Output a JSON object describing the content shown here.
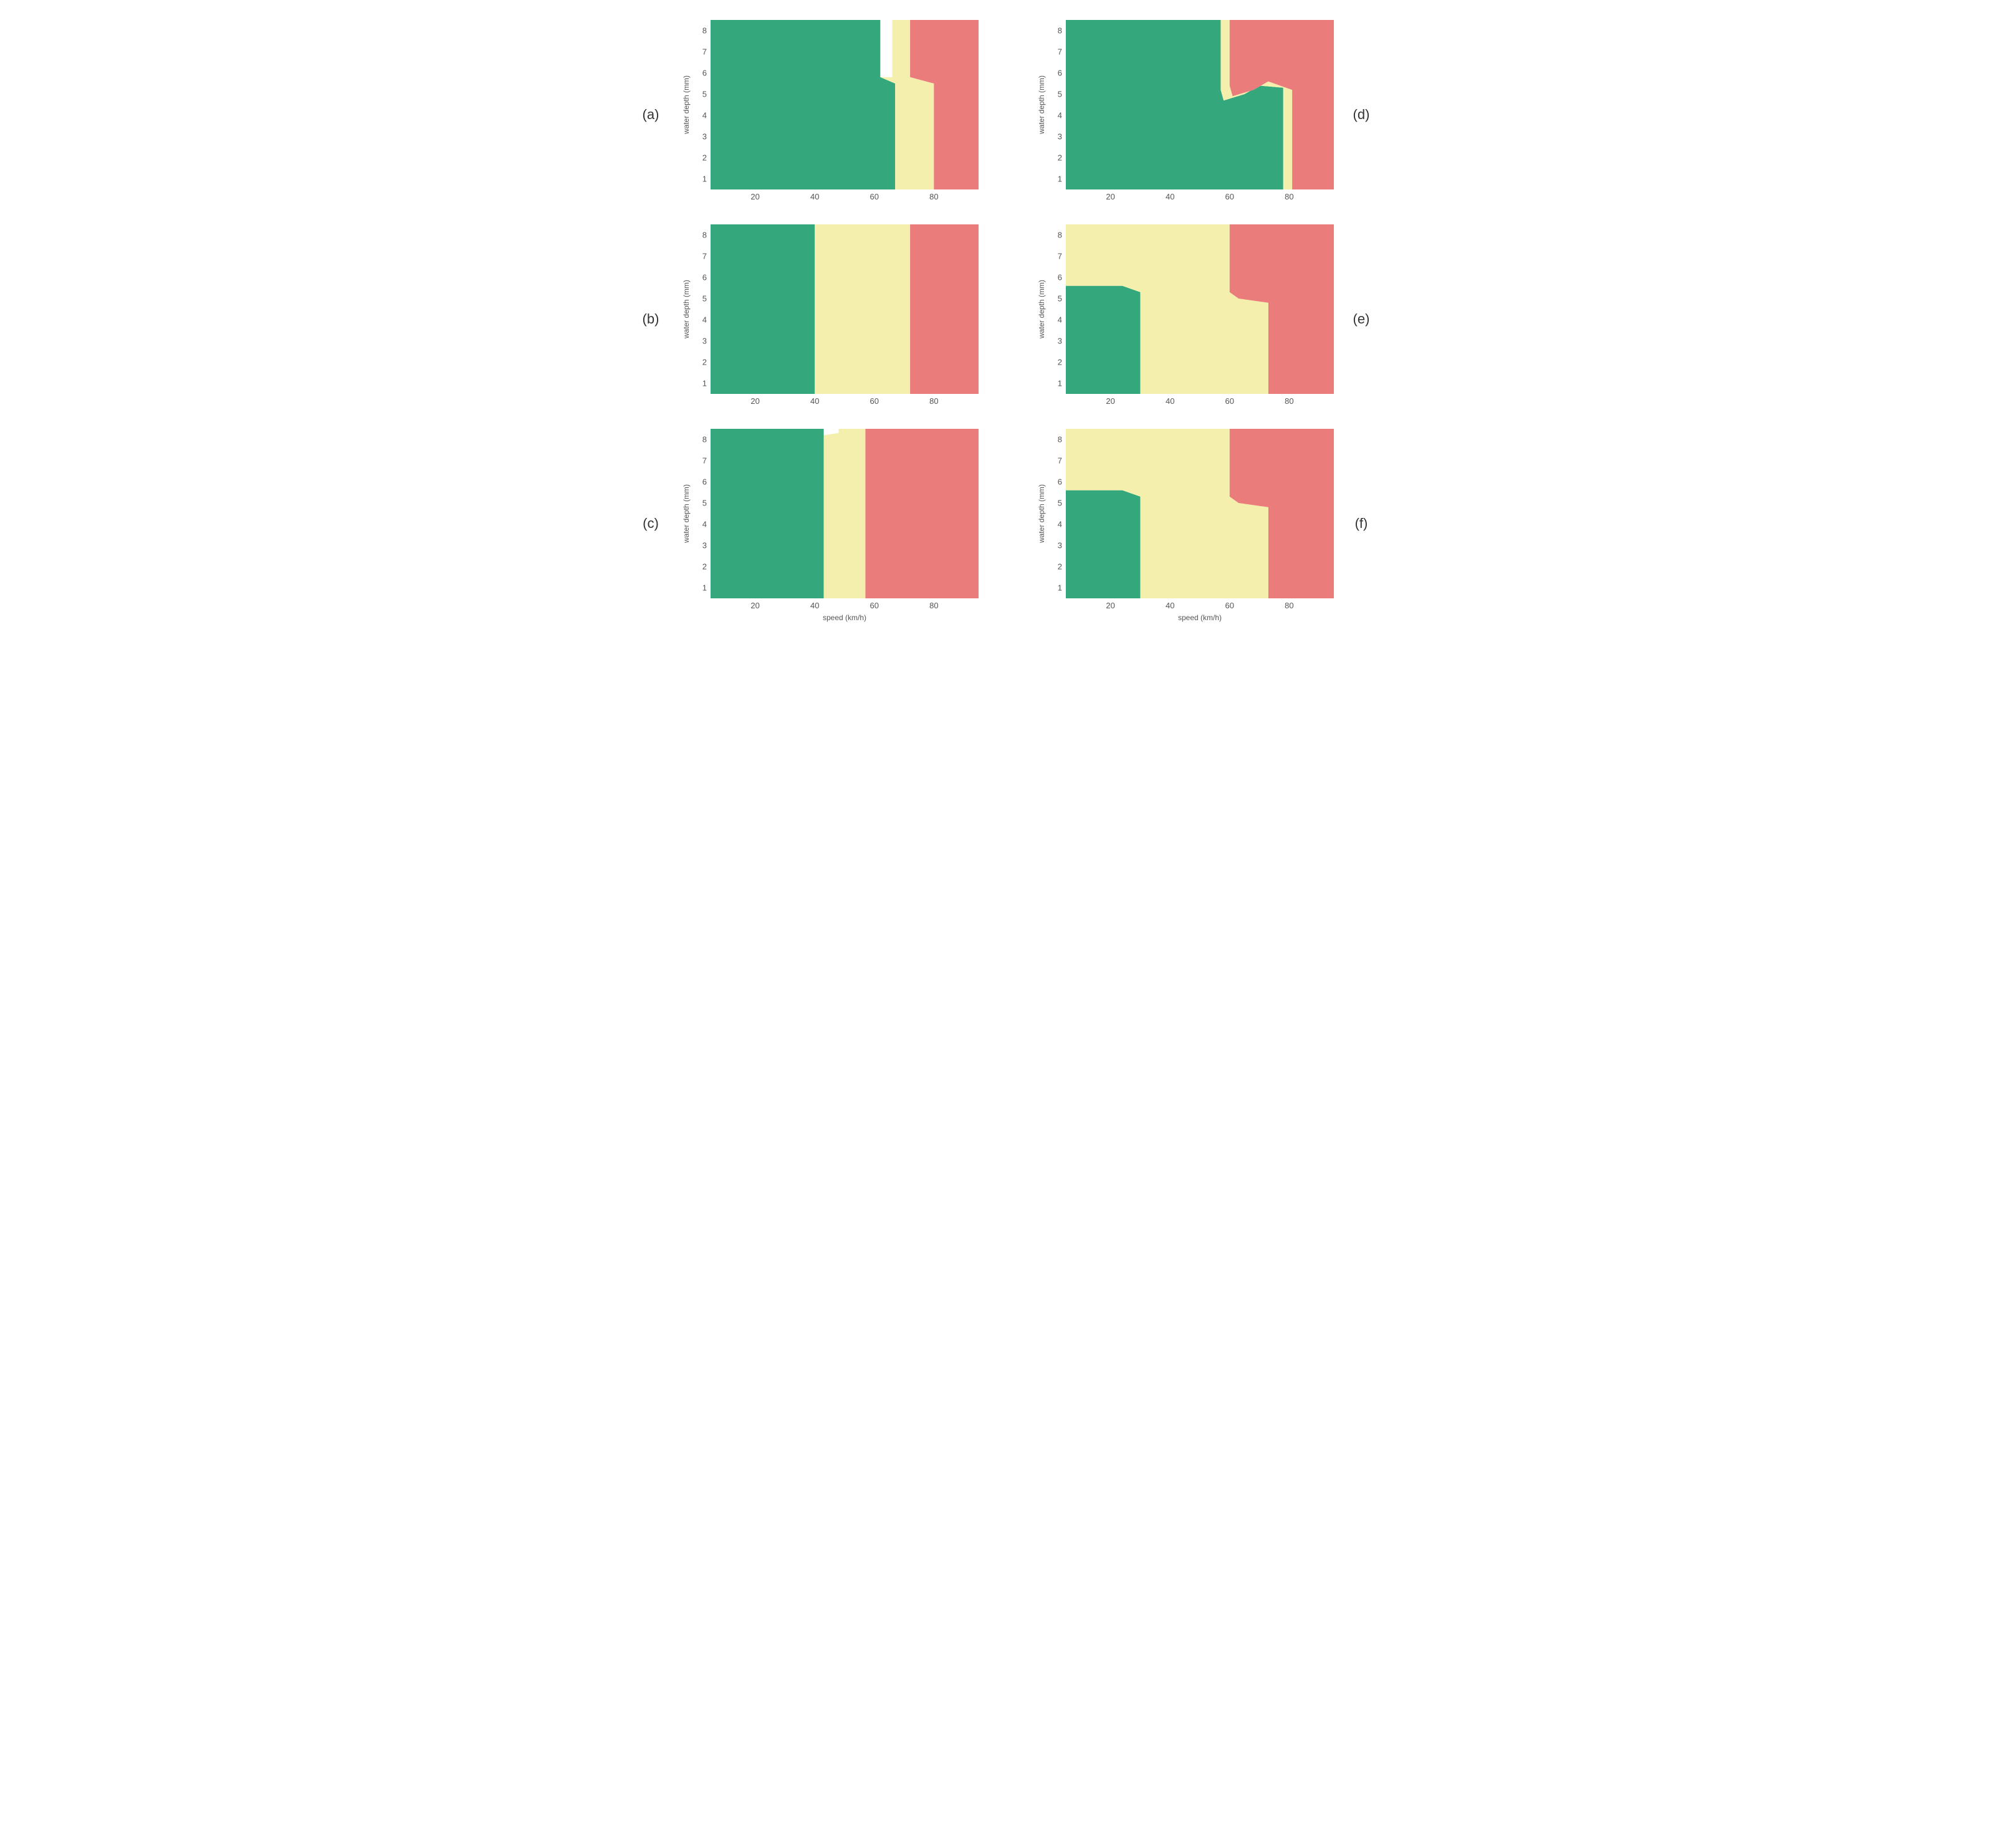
{
  "colors": {
    "green": "#34a77d",
    "yellow": "#f4efac",
    "red": "#ea7d7c",
    "background": "#ffffff",
    "axis_text": "#555555"
  },
  "axes": {
    "xlabel": "speed (km/h)",
    "ylabel": "water depth (mm)",
    "xlim": [
      5,
      95
    ],
    "ylim": [
      0.5,
      8.5
    ],
    "xticks": [
      20,
      40,
      60,
      80
    ],
    "yticks": [
      1,
      2,
      3,
      4,
      5,
      6,
      7,
      8
    ],
    "label_fontsize": 12,
    "tick_fontsize": 13,
    "show_xlabel_rows": [
      2
    ],
    "show_ylabel_all": true
  },
  "layout": {
    "rows": 3,
    "cols": 2,
    "panel_order": [
      [
        "a",
        "d"
      ],
      [
        "b",
        "e"
      ],
      [
        "c",
        "f"
      ]
    ],
    "label_side": {
      "left": [
        "a",
        "b",
        "c"
      ],
      "right": [
        "d",
        "e",
        "f"
      ]
    }
  },
  "panels": {
    "a": {
      "label": "(a)",
      "regions": [
        {
          "fill": "green",
          "points": [
            [
              5,
              0.5
            ],
            [
              67,
              0.5
            ],
            [
              67,
              5.5
            ],
            [
              62,
              5.8
            ],
            [
              62,
              8.5
            ],
            [
              5,
              8.5
            ]
          ]
        },
        {
          "fill": "yellow",
          "points": [
            [
              67,
              0.5
            ],
            [
              80,
              0.5
            ],
            [
              80,
              5.5
            ],
            [
              72,
              5.8
            ],
            [
              72,
              8.5
            ],
            [
              66,
              8.5
            ],
            [
              66,
              5.8
            ],
            [
              62,
              5.8
            ],
            [
              67,
              5.5
            ]
          ]
        },
        {
          "fill": "red",
          "points": [
            [
              80,
              0.5
            ],
            [
              95,
              0.5
            ],
            [
              95,
              8.5
            ],
            [
              72,
              8.5
            ],
            [
              72,
              5.8
            ],
            [
              80,
              5.5
            ]
          ]
        }
      ]
    },
    "b": {
      "label": "(b)",
      "regions": [
        {
          "fill": "green",
          "points": [
            [
              5,
              0.5
            ],
            [
              40,
              0.5
            ],
            [
              40,
              8.5
            ],
            [
              5,
              8.5
            ]
          ]
        },
        {
          "fill": "yellow",
          "points": [
            [
              40,
              0.5
            ],
            [
              72,
              0.5
            ],
            [
              72,
              8.5
            ],
            [
              40,
              8.5
            ]
          ]
        },
        {
          "fill": "red",
          "points": [
            [
              72,
              0.5
            ],
            [
              95,
              0.5
            ],
            [
              95,
              8.5
            ],
            [
              72,
              8.5
            ]
          ]
        }
      ]
    },
    "c": {
      "label": "(c)",
      "regions": [
        {
          "fill": "green",
          "points": [
            [
              5,
              0.5
            ],
            [
              43,
              0.5
            ],
            [
              43,
              8.5
            ],
            [
              5,
              8.5
            ]
          ]
        },
        {
          "fill": "yellow",
          "points": [
            [
              43,
              0.5
            ],
            [
              57,
              0.5
            ],
            [
              57,
              8.5
            ],
            [
              48,
              8.5
            ],
            [
              48,
              8.3
            ],
            [
              43,
              8.2
            ]
          ]
        },
        {
          "fill": "red",
          "points": [
            [
              57,
              0.5
            ],
            [
              95,
              0.5
            ],
            [
              95,
              8.5
            ],
            [
              57,
              8.5
            ]
          ]
        }
      ]
    },
    "d": {
      "label": "(d)",
      "regions": [
        {
          "fill": "green",
          "points": [
            [
              5,
              0.5
            ],
            [
              78,
              0.5
            ],
            [
              78,
              5.3
            ],
            [
              70,
              5.4
            ],
            [
              65,
              5.0
            ],
            [
              58,
              4.7
            ],
            [
              57,
              5.2
            ],
            [
              57,
              8.5
            ],
            [
              5,
              8.5
            ]
          ]
        },
        {
          "fill": "yellow",
          "points": [
            [
              78,
              0.5
            ],
            [
              81,
              0.5
            ],
            [
              81,
              5.2
            ],
            [
              73,
              5.6
            ],
            [
              68,
              5.2
            ],
            [
              61,
              4.9
            ],
            [
              60,
              5.4
            ],
            [
              60,
              8.5
            ],
            [
              57,
              8.5
            ],
            [
              57,
              5.2
            ],
            [
              58,
              4.7
            ],
            [
              65,
              5.0
            ],
            [
              70,
              5.4
            ],
            [
              78,
              5.3
            ]
          ]
        },
        {
          "fill": "red",
          "points": [
            [
              81,
              0.5
            ],
            [
              95,
              0.5
            ],
            [
              95,
              8.5
            ],
            [
              60,
              8.5
            ],
            [
              60,
              5.4
            ],
            [
              61,
              4.9
            ],
            [
              68,
              5.2
            ],
            [
              73,
              5.6
            ],
            [
              81,
              5.2
            ]
          ]
        }
      ]
    },
    "e": {
      "label": "(e)",
      "regions": [
        {
          "fill": "green",
          "points": [
            [
              5,
              0.5
            ],
            [
              30,
              0.5
            ],
            [
              30,
              5.3
            ],
            [
              24,
              5.6
            ],
            [
              5,
              5.6
            ]
          ]
        },
        {
          "fill": "yellow",
          "points": [
            [
              30,
              0.5
            ],
            [
              73,
              0.5
            ],
            [
              73,
              4.8
            ],
            [
              63,
              5.0
            ],
            [
              60,
              5.3
            ],
            [
              60,
              8.5
            ],
            [
              5,
              8.5
            ],
            [
              5,
              5.6
            ],
            [
              24,
              5.6
            ],
            [
              30,
              5.3
            ]
          ]
        },
        {
          "fill": "red",
          "points": [
            [
              73,
              0.5
            ],
            [
              95,
              0.5
            ],
            [
              95,
              8.5
            ],
            [
              60,
              8.5
            ],
            [
              60,
              5.3
            ],
            [
              63,
              5.0
            ],
            [
              73,
              4.8
            ]
          ]
        }
      ]
    },
    "f": {
      "label": "(f)",
      "regions": [
        {
          "fill": "green",
          "points": [
            [
              5,
              0.5
            ],
            [
              30,
              0.5
            ],
            [
              30,
              5.3
            ],
            [
              24,
              5.6
            ],
            [
              5,
              5.6
            ]
          ]
        },
        {
          "fill": "yellow",
          "points": [
            [
              30,
              0.5
            ],
            [
              73,
              0.5
            ],
            [
              73,
              4.8
            ],
            [
              63,
              5.0
            ],
            [
              60,
              5.3
            ],
            [
              60,
              8.5
            ],
            [
              5,
              8.5
            ],
            [
              5,
              5.6
            ],
            [
              24,
              5.6
            ],
            [
              30,
              5.3
            ]
          ]
        },
        {
          "fill": "red",
          "points": [
            [
              73,
              0.5
            ],
            [
              95,
              0.5
            ],
            [
              95,
              8.5
            ],
            [
              60,
              8.5
            ],
            [
              60,
              5.3
            ],
            [
              63,
              5.0
            ],
            [
              73,
              4.8
            ]
          ]
        }
      ]
    }
  }
}
